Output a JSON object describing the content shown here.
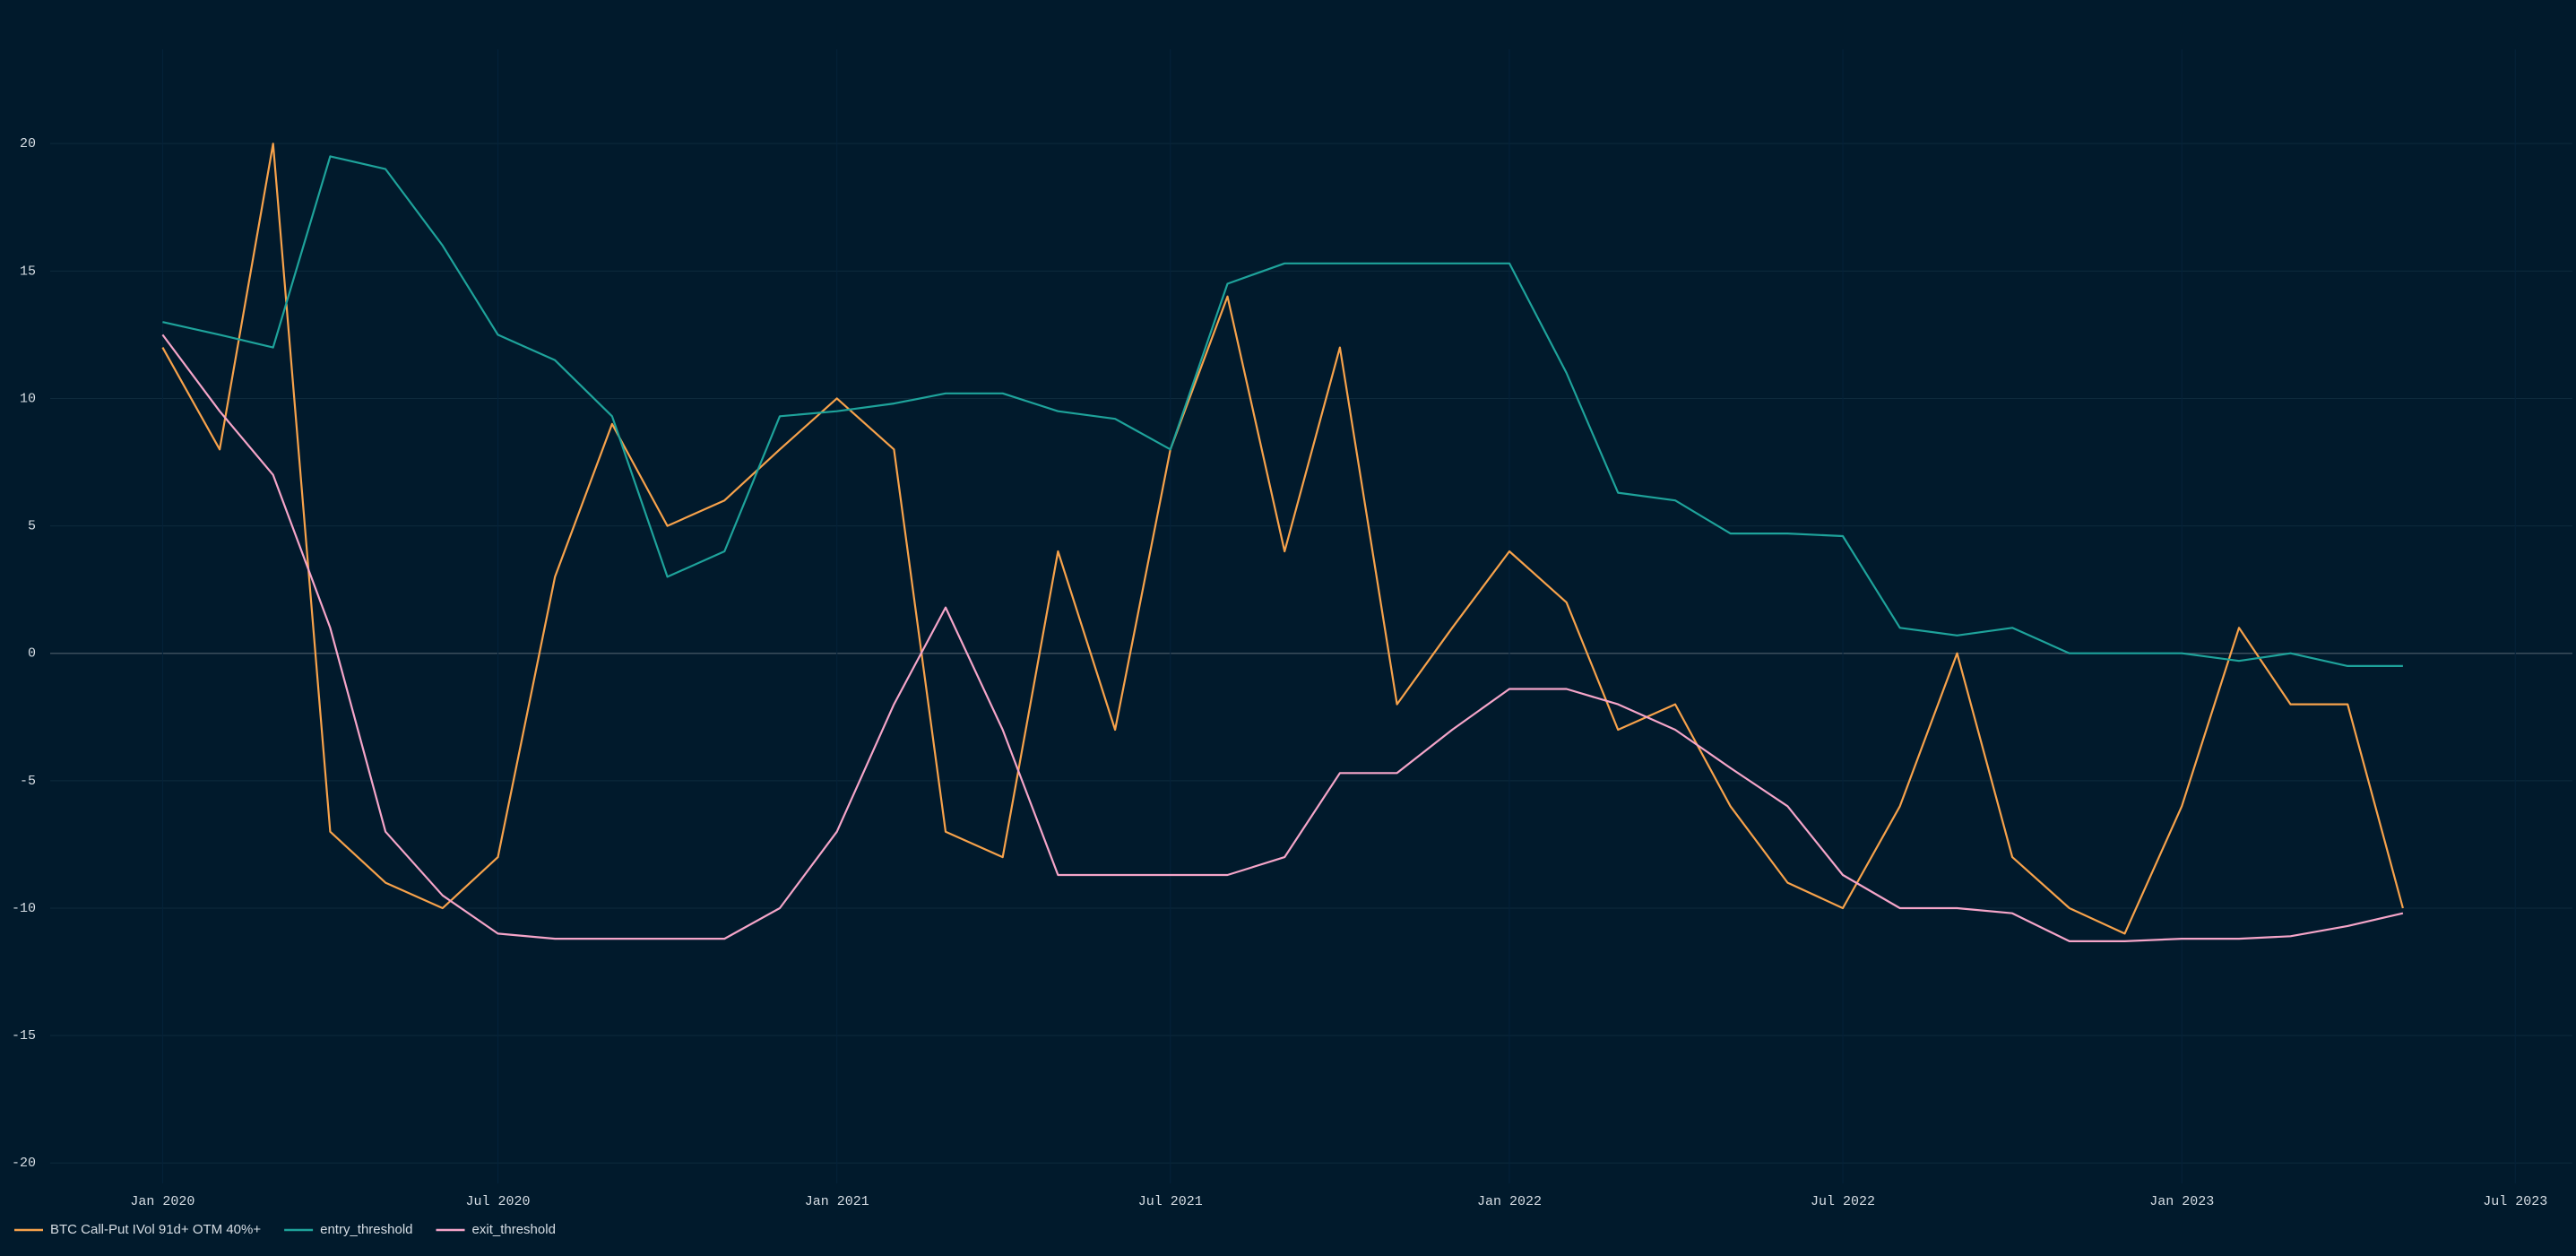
{
  "chart_data": {
    "type": "line",
    "x": [
      "2020-01",
      "2020-02",
      "2020-03",
      "2020-04",
      "2020-05",
      "2020-06",
      "2020-07",
      "2020-08",
      "2020-09",
      "2020-10",
      "2020-11",
      "2020-12",
      "2021-01",
      "2021-02",
      "2021-03",
      "2021-04",
      "2021-05",
      "2021-06",
      "2021-07",
      "2021-08",
      "2021-09",
      "2021-10",
      "2021-11",
      "2021-12",
      "2022-01",
      "2022-02",
      "2022-03",
      "2022-04",
      "2022-05",
      "2022-06",
      "2022-07",
      "2022-08",
      "2022-09",
      "2022-10",
      "2022-11",
      "2022-12",
      "2023-01",
      "2023-02",
      "2023-03",
      "2023-04",
      "2023-05"
    ],
    "series": [
      {
        "name": "BTC Call-Put IVol 91d+ OTM 40%+",
        "color": "#f7a24b",
        "values": [
          12,
          8,
          20,
          -7,
          -9,
          -10,
          -8,
          3,
          9,
          5,
          6,
          8,
          10,
          8,
          -7,
          -8,
          4,
          -3,
          8,
          14,
          4,
          12,
          -2,
          1,
          4,
          2,
          -3,
          -2,
          -6,
          -9,
          -10,
          -6,
          0,
          -8,
          -10,
          -11,
          -6,
          1,
          -2,
          -2,
          -10
        ]
      },
      {
        "name": "entry_threshold",
        "color": "#1ea39b",
        "values": [
          13,
          12.5,
          12,
          19.5,
          19,
          16,
          12.5,
          11.5,
          9.3,
          3,
          4,
          9.3,
          9.5,
          9.8,
          10.2,
          10.2,
          9.5,
          9.2,
          8,
          14.5,
          15.3,
          15.3,
          15.3,
          15.3,
          15.3,
          11,
          6.3,
          6,
          4.7,
          4.7,
          4.6,
          1,
          0.7,
          1,
          0,
          0,
          0,
          -0.3,
          0,
          -0.5,
          -0.5
        ]
      },
      {
        "name": "exit_threshold",
        "color": "#f5a5c9",
        "values": [
          12.5,
          9.5,
          7,
          1,
          -7,
          -9.5,
          -11,
          -11.2,
          -11.2,
          -11.2,
          -11.2,
          -10,
          -7,
          -2,
          1.8,
          -3,
          -8.7,
          -8.7,
          -8.7,
          -8.7,
          -8,
          -4.7,
          -4.7,
          -3,
          -1.4,
          -1.4,
          -2,
          -3,
          -4.5,
          -6,
          -8.7,
          -10,
          -10,
          -10.2,
          -11.3,
          -11.3,
          -11.2,
          -11.2,
          -11.1,
          -10.7,
          -10.2
        ]
      }
    ],
    "xlim": [
      "2019-11",
      "2023-08"
    ],
    "xticks": [
      {
        "value": "2020-01",
        "label": "Jan 2020"
      },
      {
        "value": "2020-07",
        "label": "Jul 2020"
      },
      {
        "value": "2021-01",
        "label": "Jan 2021"
      },
      {
        "value": "2021-07",
        "label": "Jul 2021"
      },
      {
        "value": "2022-01",
        "label": "Jan 2022"
      },
      {
        "value": "2022-07",
        "label": "Jul 2022"
      },
      {
        "value": "2023-01",
        "label": "Jan 2023"
      },
      {
        "value": "2023-07",
        "label": "Jul 2023"
      }
    ],
    "ylim": [
      -20.8,
      23.7
    ],
    "yticks": [
      -20,
      -15,
      -10,
      -5,
      0,
      5,
      10,
      15,
      20
    ],
    "grid": true,
    "legend": "bottom-left"
  }
}
